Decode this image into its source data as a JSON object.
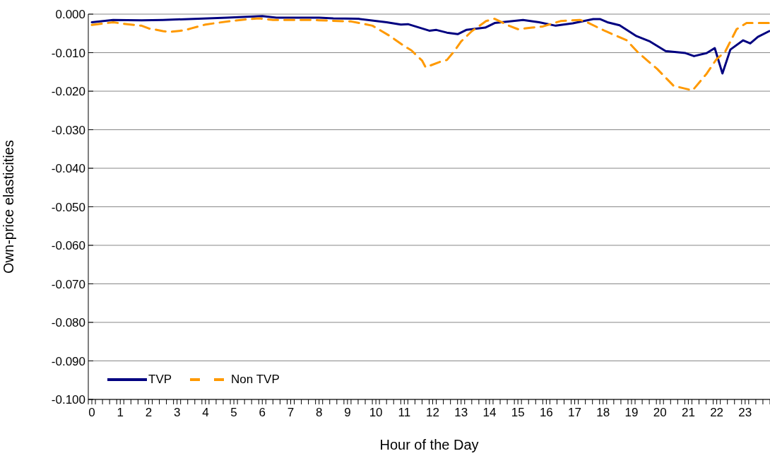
{
  "chart_data": {
    "type": "line",
    "xlabel": "Hour of the Day",
    "ylabel": "Own-price elasticities",
    "xlim": [
      -0.125,
      23.875
    ],
    "xticks": [
      {
        "value": -0.125,
        "label": null
      },
      0,
      {
        "value": 0.125,
        "label": null
      },
      {
        "value": 0.375,
        "label": null
      },
      {
        "value": 0.625,
        "label": null
      },
      {
        "value": 0.875,
        "label": null
      },
      1,
      {
        "value": 1.125,
        "label": null
      },
      {
        "value": 1.375,
        "label": null
      },
      {
        "value": 1.625,
        "label": null
      },
      {
        "value": 1.875,
        "label": null
      },
      2,
      {
        "value": 2.125,
        "label": null
      },
      {
        "value": 2.375,
        "label": null
      },
      {
        "value": 2.625,
        "label": null
      },
      {
        "value": 2.875,
        "label": null
      },
      3,
      {
        "value": 3.125,
        "label": null
      },
      {
        "value": 3.375,
        "label": null
      },
      {
        "value": 3.625,
        "label": null
      },
      {
        "value": 3.875,
        "label": null
      },
      4,
      {
        "value": 4.125,
        "label": null
      },
      {
        "value": 4.375,
        "label": null
      },
      {
        "value": 4.625,
        "label": null
      },
      {
        "value": 4.875,
        "label": null
      },
      5,
      {
        "value": 5.125,
        "label": null
      },
      {
        "value": 5.375,
        "label": null
      },
      {
        "value": 5.625,
        "label": null
      },
      {
        "value": 5.875,
        "label": null
      },
      6,
      {
        "value": 6.125,
        "label": null
      },
      {
        "value": 6.375,
        "label": null
      },
      {
        "value": 6.625,
        "label": null
      },
      {
        "value": 6.875,
        "label": null
      },
      7,
      {
        "value": 7.125,
        "label": null
      },
      {
        "value": 7.375,
        "label": null
      },
      {
        "value": 7.625,
        "label": null
      },
      {
        "value": 7.875,
        "label": null
      },
      8,
      {
        "value": 8.125,
        "label": null
      },
      {
        "value": 8.375,
        "label": null
      },
      {
        "value": 8.625,
        "label": null
      },
      {
        "value": 8.875,
        "label": null
      },
      9,
      {
        "value": 9.125,
        "label": null
      },
      {
        "value": 9.375,
        "label": null
      },
      {
        "value": 9.625,
        "label": null
      },
      {
        "value": 9.875,
        "label": null
      },
      10,
      {
        "value": 10.125,
        "label": null
      },
      {
        "value": 10.375,
        "label": null
      },
      {
        "value": 10.625,
        "label": null
      },
      {
        "value": 10.875,
        "label": null
      },
      11,
      {
        "value": 11.125,
        "label": null
      },
      {
        "value": 11.375,
        "label": null
      },
      {
        "value": 11.625,
        "label": null
      },
      {
        "value": 11.875,
        "label": null
      },
      12,
      {
        "value": 12.125,
        "label": null
      },
      {
        "value": 12.375,
        "label": null
      },
      {
        "value": 12.625,
        "label": null
      },
      {
        "value": 12.875,
        "label": null
      },
      13,
      {
        "value": 13.125,
        "label": null
      },
      {
        "value": 13.375,
        "label": null
      },
      {
        "value": 13.625,
        "label": null
      },
      {
        "value": 13.875,
        "label": null
      },
      14,
      {
        "value": 14.125,
        "label": null
      },
      {
        "value": 14.375,
        "label": null
      },
      {
        "value": 14.625,
        "label": null
      },
      {
        "value": 14.875,
        "label": null
      },
      15,
      {
        "value": 15.125,
        "label": null
      },
      {
        "value": 15.375,
        "label": null
      },
      {
        "value": 15.625,
        "label": null
      },
      {
        "value": 15.875,
        "label": null
      },
      16,
      {
        "value": 16.125,
        "label": null
      },
      {
        "value": 16.375,
        "label": null
      },
      {
        "value": 16.625,
        "label": null
      },
      {
        "value": 16.875,
        "label": null
      },
      17,
      {
        "value": 17.125,
        "label": null
      },
      {
        "value": 17.375,
        "label": null
      },
      {
        "value": 17.625,
        "label": null
      },
      {
        "value": 17.875,
        "label": null
      },
      18,
      {
        "value": 18.125,
        "label": null
      },
      {
        "value": 18.375,
        "label": null
      },
      {
        "value": 18.625,
        "label": null
      },
      {
        "value": 18.875,
        "label": null
      },
      19,
      {
        "value": 19.125,
        "label": null
      },
      {
        "value": 19.375,
        "label": null
      },
      {
        "value": 19.625,
        "label": null
      },
      {
        "value": 19.875,
        "label": null
      },
      20,
      {
        "value": 20.125,
        "label": null
      },
      {
        "value": 20.375,
        "label": null
      },
      {
        "value": 20.625,
        "label": null
      },
      {
        "value": 20.875,
        "label": null
      },
      21,
      {
        "value": 21.125,
        "label": null
      },
      {
        "value": 21.375,
        "label": null
      },
      {
        "value": 21.625,
        "label": null
      },
      {
        "value": 21.875,
        "label": null
      },
      22,
      {
        "value": 22.125,
        "label": null
      },
      {
        "value": 22.375,
        "label": null
      },
      {
        "value": 22.625,
        "label": null
      },
      {
        "value": 22.875,
        "label": null
      },
      23,
      {
        "value": 23.125,
        "label": null
      },
      {
        "value": 23.375,
        "label": null
      },
      {
        "value": 23.625,
        "label": null
      },
      {
        "value": 23.875,
        "label": null
      }
    ],
    "ylim": [
      -0.1,
      0
    ],
    "yticks": [
      {
        "value": 0,
        "label": "0.000"
      },
      {
        "value": -0.01,
        "label": "-0.010"
      },
      {
        "value": -0.02,
        "label": "-0.020"
      },
      {
        "value": -0.03,
        "label": "-0.030"
      },
      {
        "value": -0.04,
        "label": "-0.040"
      },
      {
        "value": -0.05,
        "label": "-0.050"
      },
      {
        "value": -0.06,
        "label": "-0.060"
      },
      {
        "value": -0.07,
        "label": "-0.070"
      },
      {
        "value": -0.08,
        "label": "-0.080"
      },
      {
        "value": -0.09,
        "label": "-0.090"
      },
      {
        "value": -0.1,
        "label": "-0.100"
      }
    ],
    "grid": "y",
    "legend": "bottom left",
    "marker": "none",
    "series": [
      {
        "name": "TVP",
        "color": "#000080",
        "line_style": "solid",
        "x": [
          0,
          0.75,
          1.75,
          2.5,
          3.75,
          4.75,
          6,
          6.5,
          8,
          8.5,
          9.38,
          10.38,
          10.88,
          11.13,
          11.88,
          12.13,
          12.5,
          12.88,
          13.18,
          13.85,
          14.18,
          15.18,
          15.75,
          16.33,
          16.93,
          17.65,
          17.9,
          18.15,
          18.58,
          19.15,
          19.65,
          20.2,
          20.9,
          21.2,
          21.65,
          21.93,
          22.2,
          22.48,
          22.93,
          23.18,
          23.45,
          23.85
        ],
        "values": [
          -0.0021,
          -0.0015,
          -0.0016,
          -0.0015,
          -0.0012,
          -0.0009,
          -0.0005,
          -0.0009,
          -0.0009,
          -0.0011,
          -0.0012,
          -0.0021,
          -0.0027,
          -0.0026,
          -0.0043,
          -0.0041,
          -0.0048,
          -0.0052,
          -0.0041,
          -0.0035,
          -0.0023,
          -0.0015,
          -0.0021,
          -0.003,
          -0.0024,
          -0.0013,
          -0.0013,
          -0.0021,
          -0.0029,
          -0.0056,
          -0.0071,
          -0.0096,
          -0.0101,
          -0.0109,
          -0.0101,
          -0.0088,
          -0.0154,
          -0.0092,
          -0.0068,
          -0.0076,
          -0.0059,
          -0.0044
        ]
      },
      {
        "name": "Non TVP",
        "color": "#ff9900",
        "line_style": "dashed",
        "x": [
          0,
          0.75,
          1.13,
          1.75,
          2,
          2.5,
          2.75,
          3.25,
          3.5,
          4,
          4.38,
          4.88,
          5.25,
          5.88,
          6.38,
          7.63,
          8,
          9.13,
          9.88,
          10.5,
          11,
          11.25,
          11.63,
          11.75,
          12.25,
          12.5,
          12.75,
          13,
          13.38,
          13.88,
          14.18,
          14.68,
          15,
          15.5,
          15.88,
          16.5,
          17.18,
          17.43,
          18.08,
          18.83,
          19.25,
          19.9,
          20.48,
          21.15,
          21.65,
          21.98,
          22.3,
          22.7,
          23.05,
          23.85
        ],
        "values": [
          -0.0028,
          -0.0021,
          -0.0025,
          -0.003,
          -0.0037,
          -0.0044,
          -0.0046,
          -0.0042,
          -0.0037,
          -0.0027,
          -0.0023,
          -0.0018,
          -0.0015,
          -0.0011,
          -0.0015,
          -0.0015,
          -0.0016,
          -0.0019,
          -0.003,
          -0.0057,
          -0.0083,
          -0.0094,
          -0.0121,
          -0.0138,
          -0.0124,
          -0.0119,
          -0.0097,
          -0.0071,
          -0.0044,
          -0.0018,
          -0.0012,
          -0.003,
          -0.0039,
          -0.0035,
          -0.0032,
          -0.0018,
          -0.0015,
          -0.0021,
          -0.0044,
          -0.0068,
          -0.0101,
          -0.0142,
          -0.0186,
          -0.0198,
          -0.0154,
          -0.0118,
          -0.0097,
          -0.0039,
          -0.0023,
          -0.0023
        ]
      }
    ]
  }
}
